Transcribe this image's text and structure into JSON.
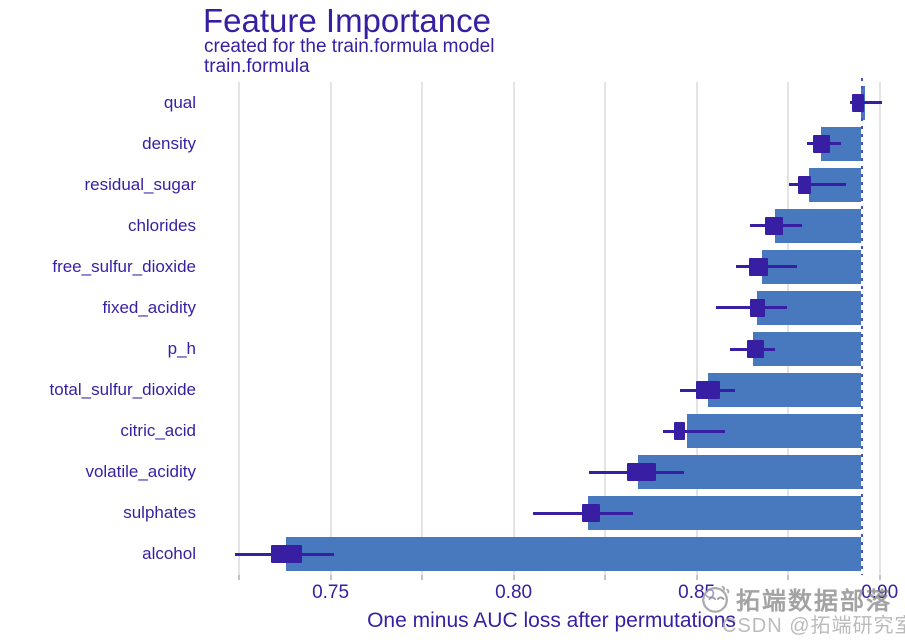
{
  "title": "Feature Importance",
  "subtitle_line1": "created for the train.formula model",
  "subtitle_line2": "train.formula",
  "watermark": {
    "line1": "拓端数据部落",
    "line2": "CSDN @拓端研究室",
    "face_icon": "smiley-face-icon"
  },
  "chart_data": {
    "type": "bar",
    "orientation": "horizontal",
    "title": "Feature Importance",
    "subtitle": "created for the train.formula model / train.formula",
    "xlabel": "One minus AUC loss after permutations",
    "ylabel": "",
    "xlim": [
      0.7157,
      0.905
    ],
    "baseline_full_model": 0.895,
    "grid": true,
    "x_gridlines": [
      0.725,
      0.75,
      0.775,
      0.8,
      0.825,
      0.85,
      0.875,
      0.9
    ],
    "x_ticks": [
      {
        "v": 0.75,
        "label": "0.75"
      },
      {
        "v": 0.8,
        "label": "0.80"
      },
      {
        "v": 0.85,
        "label": "0.85"
      },
      {
        "v": 0.9,
        "label": "0.90"
      }
    ],
    "features": [
      {
        "name": "qual",
        "value": 0.896,
        "box": [
          0.8925,
          0.8957
        ],
        "whiskers": [
          0.8918,
          0.9007
        ]
      },
      {
        "name": "density",
        "value": 0.8841,
        "box": [
          0.8819,
          0.8864
        ],
        "whiskers": [
          0.8801,
          0.8893
        ]
      },
      {
        "name": "residual_sugar",
        "value": 0.8806,
        "box": [
          0.8776,
          0.8811
        ],
        "whiskers": [
          0.8752,
          0.8908
        ]
      },
      {
        "name": "chlorides",
        "value": 0.8714,
        "box": [
          0.8686,
          0.8737
        ],
        "whiskers": [
          0.8646,
          0.8788
        ]
      },
      {
        "name": "free_sulfur_dioxide",
        "value": 0.8678,
        "box": [
          0.8642,
          0.8696
        ],
        "whiskers": [
          0.8608,
          0.8774
        ]
      },
      {
        "name": "fixed_acidity",
        "value": 0.8664,
        "box": [
          0.8646,
          0.8687
        ],
        "whiskers": [
          0.8553,
          0.8746
        ]
      },
      {
        "name": "p_h",
        "value": 0.8654,
        "box": [
          0.8637,
          0.8683
        ],
        "whiskers": [
          0.859,
          0.8714
        ]
      },
      {
        "name": "total_sulfur_dioxide",
        "value": 0.8532,
        "box": [
          0.8499,
          0.8564
        ],
        "whiskers": [
          0.8455,
          0.8605
        ]
      },
      {
        "name": "citric_acid",
        "value": 0.8473,
        "box": [
          0.8437,
          0.8469
        ],
        "whiskers": [
          0.8408,
          0.8578
        ]
      },
      {
        "name": "volatile_acidity",
        "value": 0.834,
        "box": [
          0.831,
          0.839
        ],
        "whiskers": [
          0.8207,
          0.8466
        ]
      },
      {
        "name": "sulphates",
        "value": 0.8204,
        "box": [
          0.8186,
          0.8236
        ],
        "whiskers": [
          0.8054,
          0.8326
        ]
      },
      {
        "name": "alcohol",
        "value": 0.7378,
        "box": [
          0.7337,
          0.7423
        ],
        "whiskers": [
          0.7239,
          0.751
        ]
      }
    ],
    "colors": {
      "accent_text": "#371ea3",
      "bar": "#4878bd",
      "boxplot": "#371ea3",
      "dashed_line": "#4353c8",
      "gridline": "#e4e4e6"
    },
    "legend_position": "none"
  }
}
